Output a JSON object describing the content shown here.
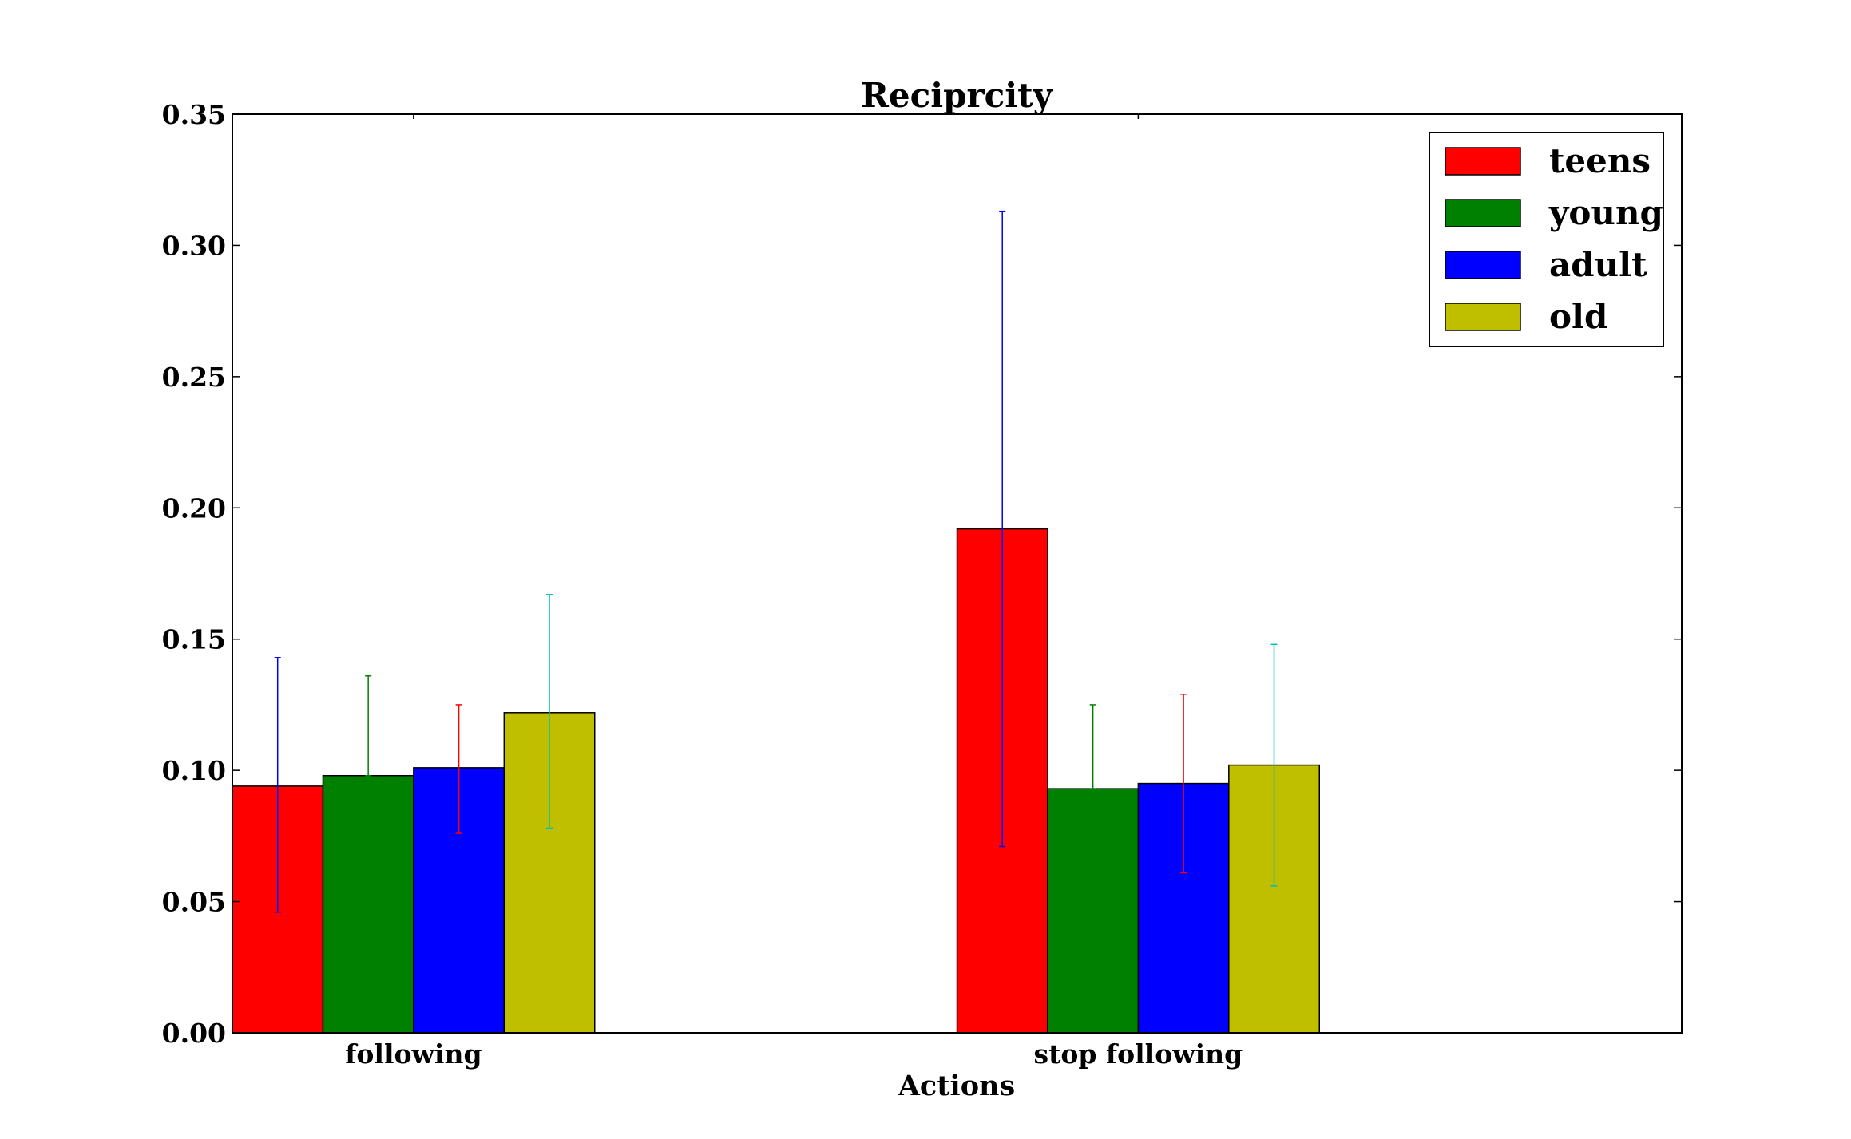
{
  "chart_data": {
    "type": "bar",
    "title": "Reciprcity",
    "xlabel": "Actions",
    "ylabel": "",
    "ylim": [
      0,
      0.35
    ],
    "yticks": [
      "0.00",
      "0.05",
      "0.10",
      "0.15",
      "0.20",
      "0.25",
      "0.30",
      "0.35"
    ],
    "categories": [
      "following",
      "stop following"
    ],
    "legend_position": "top-right",
    "series": [
      {
        "name": "teens",
        "color": "#ff0000",
        "error_color": "#0000ff",
        "values": [
          0.094,
          0.192
        ],
        "error_low": [
          0.046,
          0.071
        ],
        "error_high": [
          0.143,
          0.313
        ]
      },
      {
        "name": "young",
        "color": "#008000",
        "error_color": "#008000",
        "values": [
          0.098,
          0.093
        ],
        "error_low": [
          0.098,
          0.093
        ],
        "error_high": [
          0.136,
          0.125
        ]
      },
      {
        "name": "adult",
        "color": "#0000ff",
        "error_color": "#ff0000",
        "values": [
          0.101,
          0.095
        ],
        "error_low": [
          0.076,
          0.061
        ],
        "error_high": [
          0.125,
          0.129
        ]
      },
      {
        "name": "old",
        "color": "#bfbf00",
        "error_color": "#00bfbf",
        "values": [
          0.122,
          0.102
        ],
        "error_low": [
          0.078,
          0.056
        ],
        "error_high": [
          0.167,
          0.148
        ]
      }
    ]
  }
}
